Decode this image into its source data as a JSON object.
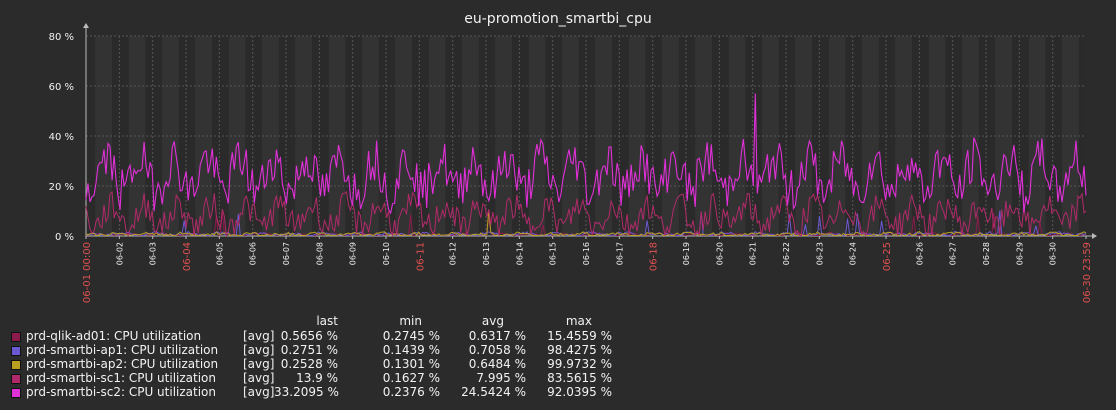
{
  "chart_data": {
    "type": "line",
    "title": "eu-promotion_smartbi_cpu",
    "xlabel": "",
    "ylabel": "",
    "ylim": [
      0,
      80
    ],
    "y_ticks": [
      "0 %",
      "20 %",
      "40 %",
      "60 %",
      "80 %"
    ],
    "y_tick_values": [
      0,
      20,
      40,
      60,
      80
    ],
    "x_range": [
      "06-01 00:00",
      "06-30 23:59"
    ],
    "x_tick_labels": [
      "06-01 00:00",
      "06-02",
      "06-03",
      "06-04",
      "06-05",
      "06-06",
      "06-07",
      "06-08",
      "06-09",
      "06-10",
      "06-11",
      "06-12",
      "06-13",
      "06-14",
      "06-15",
      "06-16",
      "06-17",
      "06-18",
      "06-19",
      "06-20",
      "06-21",
      "06-22",
      "06-23",
      "06-24",
      "06-25",
      "06-26",
      "06-27",
      "06-28",
      "06-29",
      "06-30",
      "06-30 23:59"
    ],
    "highlighted_ticks": [
      "06-01 00:00",
      "06-04",
      "06-11",
      "06-18",
      "06-25",
      "06-30 23:59"
    ],
    "grid": true,
    "legend_placement": "bottom-left",
    "colors": {
      "background": "#2b2b2b",
      "plot": "#333333",
      "dark_band": "#2a2a2a",
      "grid": "#555555",
      "highlight_tick": "#e05050",
      "axis": "#bbbbbb"
    },
    "series": [
      {
        "name": "prd-qlik-ad01: CPU utilization",
        "agg": "[avg]",
        "color": "#8a1c4c",
        "last": "0.5656 %",
        "min": "0.2745 %",
        "avg": "0.6317 %",
        "max": "15.4559 %",
        "typical_percent": 0.6,
        "variation_percent": 0.6
      },
      {
        "name": "prd-smartbi-ap1: CPU utilization",
        "agg": "[avg]",
        "color": "#6a5ad2",
        "last": "0.2751 %",
        "min": "0.1439 %",
        "avg": "0.7058 %",
        "max": "98.4275 %",
        "typical_percent": 0.7,
        "variation_percent": 0.8
      },
      {
        "name": "prd-smartbi-ap2: CPU utilization",
        "agg": "[avg]",
        "color": "#b8a020",
        "last": "0.2528 %",
        "min": "0.1301 %",
        "avg": "0.6484 %",
        "max": "99.9732 %",
        "typical_percent": 0.6,
        "variation_percent": 0.8
      },
      {
        "name": "prd-smartbi-sc1: CPU utilization",
        "agg": "[avg]",
        "color": "#b02a6a",
        "last": "13.9 %",
        "min": "0.1627 %",
        "avg": "7.995 %",
        "max": "83.5615 %",
        "typical_percent": 8,
        "variation_percent": 7
      },
      {
        "name": "prd-smartbi-sc2: CPU utilization",
        "agg": "[avg]",
        "color": "#e030d8",
        "last": "33.2095 %",
        "min": "0.2376 %",
        "avg": "24.5424 %",
        "max": "92.0395 %",
        "typical_percent": 24.5,
        "variation_percent": 11
      }
    ]
  },
  "legend": {
    "col_last": "last",
    "col_min": "min",
    "col_avg": "avg",
    "col_max": "max"
  }
}
